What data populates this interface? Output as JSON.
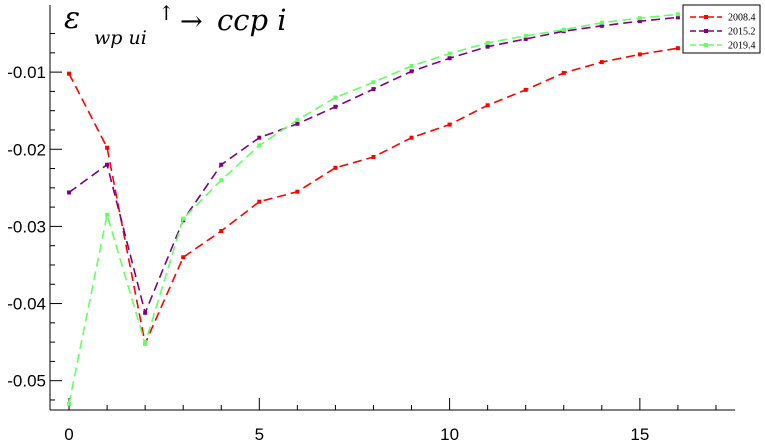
{
  "chart_data": {
    "type": "line",
    "title_parts": {
      "epsilon": "ε",
      "subscript": "wp ui",
      "up_arrow": "↑",
      "arrow": "→",
      "rest": "ccp i"
    },
    "x": [
      0,
      1,
      2,
      3,
      4,
      5,
      6,
      7,
      8,
      9,
      10,
      11,
      12,
      13,
      14,
      15,
      16
    ],
    "x_ticks": [
      0,
      5,
      10,
      15
    ],
    "y_ticks": [
      -0.01,
      -0.02,
      -0.03,
      -0.04,
      -0.05
    ],
    "y_tick_labels": [
      "-0.01",
      "-0.02",
      "-0.03",
      "-0.04",
      "-0.05"
    ],
    "x_tick_labels": [
      "0",
      "5",
      "10",
      "15"
    ],
    "xlim": [
      -0.5,
      17.5
    ],
    "ylim": [
      -0.0538,
      -0.0013
    ],
    "legend_position": "top-right",
    "series": [
      {
        "name": "2008.4",
        "color": "#ff0000",
        "values": [
          -0.0102,
          -0.0198,
          -0.0452,
          -0.034,
          -0.0306,
          -0.0268,
          -0.0255,
          -0.0224,
          -0.021,
          -0.0185,
          -0.0168,
          -0.0143,
          -0.0123,
          -0.0101,
          -0.0087,
          -0.0077,
          -0.0069
        ]
      },
      {
        "name": "2015.2",
        "color": "#7f007f",
        "values": [
          -0.0256,
          -0.022,
          -0.0412,
          -0.0292,
          -0.022,
          -0.0185,
          -0.0167,
          -0.0145,
          -0.0122,
          -0.0099,
          -0.0082,
          -0.0067,
          -0.0057,
          -0.0047,
          -0.004,
          -0.0034,
          -0.0029
        ]
      },
      {
        "name": "2019.4",
        "color": "#66ff66",
        "values": [
          -0.053,
          -0.0285,
          -0.0452,
          -0.029,
          -0.024,
          -0.0195,
          -0.0162,
          -0.0133,
          -0.0113,
          -0.0092,
          -0.0076,
          -0.0062,
          -0.0053,
          -0.0045,
          -0.0036,
          -0.003,
          -0.0025
        ]
      }
    ]
  }
}
